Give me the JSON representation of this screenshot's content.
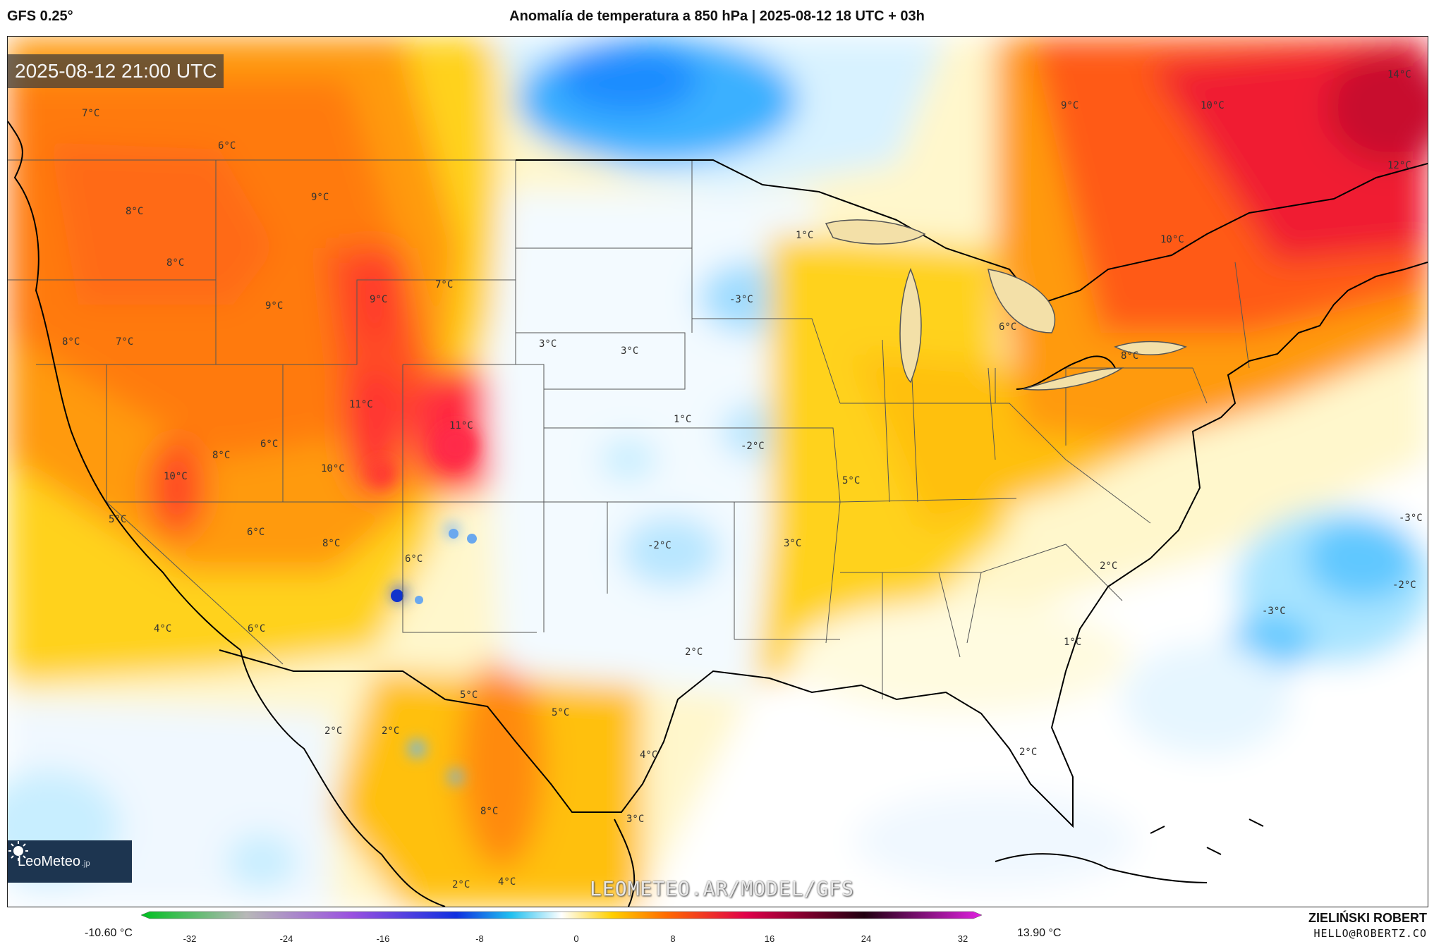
{
  "header": {
    "model": "GFS 0.25°",
    "title": "Anomalía de temperatura a 850 hPa | 2025-08-12 18 UTC + 03h"
  },
  "map": {
    "valid_time": "2025-08-12 21:00 UTC",
    "watermark": "LEOMETEO.AR/MODEL/GFS",
    "logo": "LeoMeteo",
    "logo_suffix": ".jp",
    "labels": [
      {
        "text": "7°C"
      },
      {
        "text": "6°C"
      },
      {
        "text": "8°C"
      },
      {
        "text": "9°C"
      },
      {
        "text": "8°C"
      },
      {
        "text": "9°C"
      },
      {
        "text": "9°C"
      },
      {
        "text": "7°C"
      },
      {
        "text": "8°C"
      },
      {
        "text": "7°C"
      },
      {
        "text": "11°C"
      },
      {
        "text": "11°C"
      },
      {
        "text": "6°C"
      },
      {
        "text": "8°C"
      },
      {
        "text": "10°C"
      },
      {
        "text": "10°C"
      },
      {
        "text": "5°C"
      },
      {
        "text": "6°C"
      },
      {
        "text": "8°C"
      },
      {
        "text": "6°C"
      },
      {
        "text": "4°C"
      },
      {
        "text": "6°C"
      },
      {
        "text": "3°C"
      },
      {
        "text": "3°C"
      },
      {
        "text": "1°C"
      },
      {
        "text": "-3°C"
      },
      {
        "text": "-2°C"
      },
      {
        "text": "1°C"
      },
      {
        "text": "5°C"
      },
      {
        "text": "-2°C"
      },
      {
        "text": "3°C"
      },
      {
        "text": "2°C"
      },
      {
        "text": "5°C"
      },
      {
        "text": "5°C"
      },
      {
        "text": "2°C"
      },
      {
        "text": "2°C"
      },
      {
        "text": "4°C"
      },
      {
        "text": "8°C"
      },
      {
        "text": "3°C"
      },
      {
        "text": "2°C"
      },
      {
        "text": "4°C"
      },
      {
        "text": "9°C"
      },
      {
        "text": "10°C"
      },
      {
        "text": "14°C"
      },
      {
        "text": "12°C"
      },
      {
        "text": "10°C"
      },
      {
        "text": "6°C"
      },
      {
        "text": "8°C"
      },
      {
        "text": "2°C"
      },
      {
        "text": "1°C"
      },
      {
        "text": "2°C"
      },
      {
        "text": "-3°C"
      },
      {
        "text": "-2°C"
      },
      {
        "text": "-3°C"
      }
    ]
  },
  "legend": {
    "min_label": "-10.60 °C",
    "max_label": "13.90 °C",
    "ticks": [
      "-32",
      "-24",
      "-16",
      "-8",
      "0",
      "8",
      "16",
      "24",
      "32"
    ],
    "colors": {
      "neg32": "#00c020",
      "neg24": "#b0b0b0",
      "neg16": "#9a50e0",
      "neg8": "#1030e0",
      "neg4": "#20c0f0",
      "zero": "#ffffff",
      "pos4": "#ffd000",
      "pos8": "#ff6a00",
      "pos16": "#e0004a",
      "pos24": "#200010",
      "pos32": "#e020e0"
    }
  },
  "author": {
    "name": "ZIELIŃSKI ROBERT",
    "email": "HELLO@ROBERTZ.CO"
  }
}
